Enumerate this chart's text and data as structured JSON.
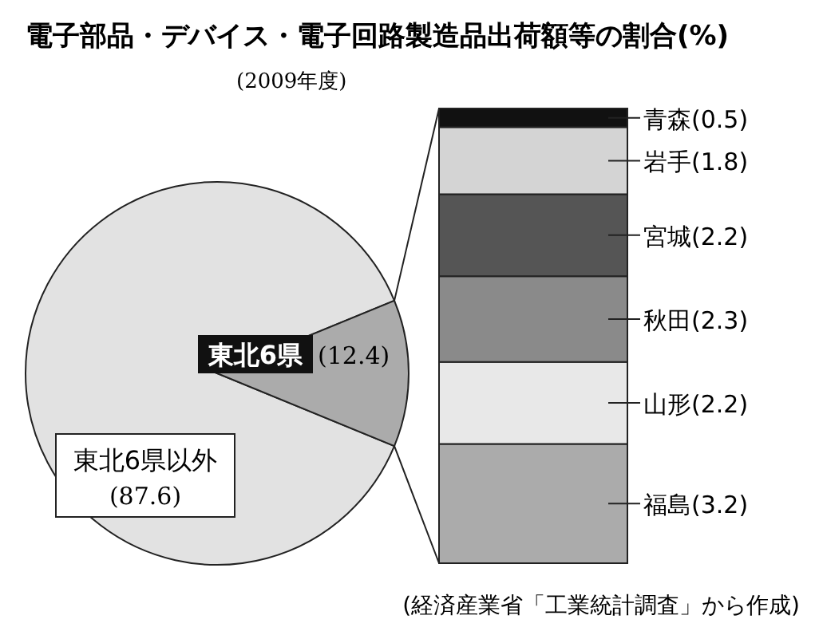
{
  "chart_data": [
    {
      "type": "pie",
      "title": "電子部品・デバイス・電子回路製造品出荷額等の割合(%)",
      "subtitle": "(2009年度)",
      "categories": [
        "東北6県以外",
        "東北6県"
      ],
      "values": [
        87.6,
        12.4
      ],
      "value_labels": [
        "(87.6)",
        "(12.4)"
      ],
      "colors": [
        "#e2e2e2",
        "#ababab"
      ],
      "annotations": [
        "(経済産業省「工業統計調査」から作成)"
      ]
    },
    {
      "type": "bar",
      "stacked": true,
      "categories": [
        null
      ],
      "series": [
        {
          "color": "#ababab",
          "values": [
            3.2
          ],
          "value_labels": [
            "福島(3.2)"
          ]
        },
        {
          "color": "#e8e8e8",
          "values": [
            2.2
          ],
          "value_labels": [
            "山形(2.2)"
          ]
        },
        {
          "color": "#8a8a8a",
          "values": [
            2.3
          ],
          "value_labels": [
            "秋田(2.3)"
          ]
        },
        {
          "color": "#555555",
          "values": [
            2.2
          ],
          "value_labels": [
            "宮城(2.2)"
          ]
        },
        {
          "color": "#d4d4d4",
          "values": [
            1.8
          ],
          "value_labels": [
            "岩手(1.8)"
          ]
        },
        {
          "color": "#111111",
          "values": [
            0.5
          ],
          "value_labels": [
            "青森(0.5)"
          ]
        }
      ]
    }
  ]
}
